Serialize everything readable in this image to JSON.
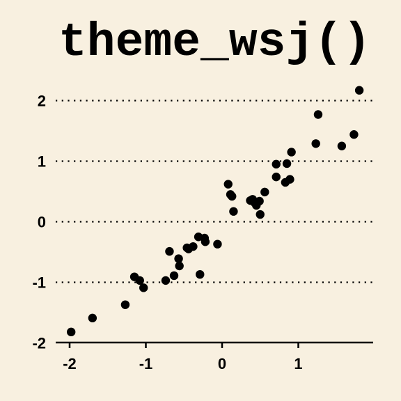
{
  "chart_data": {
    "type": "scatter",
    "title": "theme_wsj()",
    "xlabel": "",
    "ylabel": "",
    "xlim": [
      -2.0,
      2.0
    ],
    "ylim": [
      -2.0,
      2.25
    ],
    "x_ticks": [
      -2,
      -1,
      0,
      1
    ],
    "y_ticks": [
      -2,
      -1,
      0,
      1,
      2
    ],
    "x_tick_labels": [
      "-2",
      "-1",
      "0",
      "1"
    ],
    "y_tick_labels": [
      "-2",
      "-1",
      "0",
      "1",
      "2"
    ],
    "grid": "horizontal dotted",
    "legend": "none",
    "point_color": "#000000",
    "background_color": "#f8f0e0",
    "points": [
      {
        "x": -1.98,
        "y": -1.82
      },
      {
        "x": -1.7,
        "y": -1.59
      },
      {
        "x": -1.27,
        "y": -1.37
      },
      {
        "x": -1.15,
        "y": -0.91
      },
      {
        "x": -1.08,
        "y": -0.97
      },
      {
        "x": -1.03,
        "y": -1.09
      },
      {
        "x": -0.74,
        "y": -0.97
      },
      {
        "x": -0.69,
        "y": -0.49
      },
      {
        "x": -0.63,
        "y": -0.89
      },
      {
        "x": -0.57,
        "y": -0.61
      },
      {
        "x": -0.56,
        "y": -0.73
      },
      {
        "x": -0.46,
        "y": -0.43
      },
      {
        "x": -0.44,
        "y": -0.45
      },
      {
        "x": -0.38,
        "y": -0.41
      },
      {
        "x": -0.31,
        "y": -0.25
      },
      {
        "x": -0.29,
        "y": -0.87
      },
      {
        "x": -0.23,
        "y": -0.27
      },
      {
        "x": -0.22,
        "y": -0.33
      },
      {
        "x": -0.06,
        "y": -0.37
      },
      {
        "x": 0.08,
        "y": 0.62
      },
      {
        "x": 0.11,
        "y": 0.45
      },
      {
        "x": 0.13,
        "y": 0.42
      },
      {
        "x": 0.15,
        "y": 0.17
      },
      {
        "x": 0.37,
        "y": 0.35
      },
      {
        "x": 0.4,
        "y": 0.37
      },
      {
        "x": 0.43,
        "y": 0.31
      },
      {
        "x": 0.45,
        "y": 0.27
      },
      {
        "x": 0.49,
        "y": 0.34
      },
      {
        "x": 0.5,
        "y": 0.12
      },
      {
        "x": 0.56,
        "y": 0.49
      },
      {
        "x": 0.71,
        "y": 0.95
      },
      {
        "x": 0.71,
        "y": 0.74
      },
      {
        "x": 0.83,
        "y": 0.65
      },
      {
        "x": 0.85,
        "y": 0.96
      },
      {
        "x": 0.89,
        "y": 0.7
      },
      {
        "x": 0.91,
        "y": 1.15
      },
      {
        "x": 1.23,
        "y": 1.29
      },
      {
        "x": 1.26,
        "y": 1.77
      },
      {
        "x": 1.57,
        "y": 1.25
      },
      {
        "x": 1.73,
        "y": 1.44
      },
      {
        "x": 1.8,
        "y": 2.17
      }
    ]
  }
}
